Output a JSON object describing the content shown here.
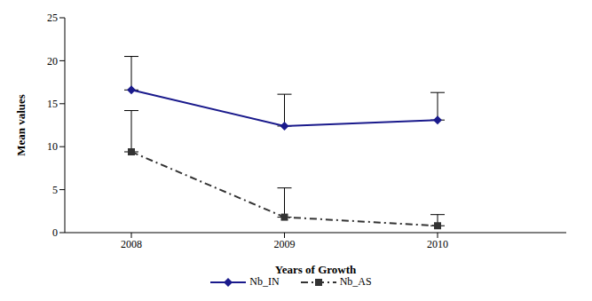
{
  "chart_data": {
    "type": "line",
    "x_label": "Years of Growth",
    "y_label": "Mean values",
    "categories": [
      "2008",
      "2009",
      "2010"
    ],
    "ylim": [
      0,
      25
    ],
    "yticks": [
      0,
      5,
      10,
      15,
      20,
      25
    ],
    "grid": false,
    "legend": "bottom",
    "series": [
      {
        "name": "Nb_IN",
        "color": "#1a1a8c",
        "marker": "diamond",
        "line_style": "solid",
        "values": [
          16.6,
          12.4,
          13.1
        ],
        "errors": [
          3.9,
          3.7,
          3.2
        ]
      },
      {
        "name": "Nb_AS",
        "color": "#333333",
        "marker": "square",
        "line_style": "dashdot",
        "values": [
          9.4,
          1.8,
          0.8
        ],
        "errors": [
          4.8,
          3.4,
          1.3
        ]
      }
    ]
  }
}
